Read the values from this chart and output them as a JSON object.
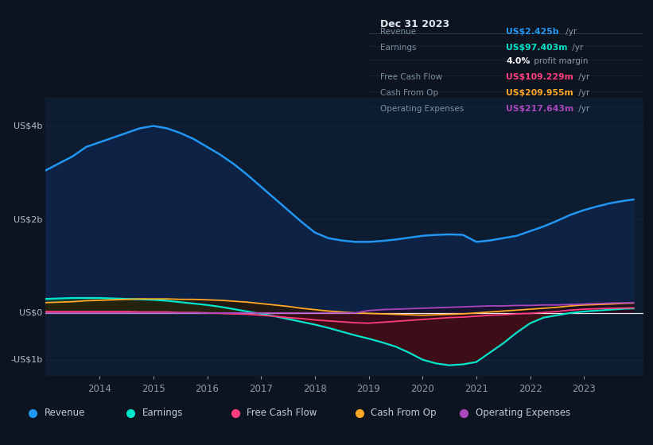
{
  "bg_color": "#0d1420",
  "plot_bg_color": "#0d1c30",
  "grid_color": "#1a2a3a",
  "zero_line_color": "#ffffff",
  "years": [
    2013.0,
    2013.25,
    2013.5,
    2013.75,
    2014.0,
    2014.25,
    2014.5,
    2014.75,
    2015.0,
    2015.25,
    2015.5,
    2015.75,
    2016.0,
    2016.25,
    2016.5,
    2016.75,
    2017.0,
    2017.25,
    2017.5,
    2017.75,
    2018.0,
    2018.25,
    2018.5,
    2018.75,
    2019.0,
    2019.25,
    2019.5,
    2019.75,
    2020.0,
    2020.25,
    2020.5,
    2020.75,
    2021.0,
    2021.25,
    2021.5,
    2021.75,
    2022.0,
    2022.25,
    2022.5,
    2022.75,
    2023.0,
    2023.25,
    2023.5,
    2023.75,
    2023.92
  ],
  "revenue": [
    3.05,
    3.2,
    3.35,
    3.55,
    3.65,
    3.75,
    3.85,
    3.95,
    4.0,
    3.95,
    3.85,
    3.72,
    3.55,
    3.38,
    3.18,
    2.95,
    2.7,
    2.45,
    2.2,
    1.95,
    1.72,
    1.6,
    1.55,
    1.52,
    1.52,
    1.54,
    1.57,
    1.61,
    1.65,
    1.67,
    1.68,
    1.67,
    1.52,
    1.55,
    1.6,
    1.65,
    1.75,
    1.85,
    1.97,
    2.1,
    2.2,
    2.28,
    2.35,
    2.4,
    2.425
  ],
  "earnings": [
    0.3,
    0.31,
    0.32,
    0.32,
    0.32,
    0.31,
    0.3,
    0.29,
    0.28,
    0.26,
    0.23,
    0.2,
    0.17,
    0.13,
    0.08,
    0.03,
    -0.02,
    -0.07,
    -0.13,
    -0.19,
    -0.25,
    -0.32,
    -0.4,
    -0.48,
    -0.55,
    -0.63,
    -0.72,
    -0.85,
    -1.0,
    -1.08,
    -1.12,
    -1.1,
    -1.05,
    -0.85,
    -0.65,
    -0.42,
    -0.22,
    -0.1,
    -0.05,
    0.0,
    0.03,
    0.05,
    0.07,
    0.09,
    0.097
  ],
  "free_cash_flow": [
    0.03,
    0.03,
    0.03,
    0.03,
    0.03,
    0.03,
    0.03,
    0.02,
    0.02,
    0.02,
    0.01,
    0.01,
    0.0,
    -0.01,
    -0.02,
    -0.03,
    -0.05,
    -0.07,
    -0.1,
    -0.12,
    -0.15,
    -0.17,
    -0.19,
    -0.21,
    -0.22,
    -0.2,
    -0.18,
    -0.16,
    -0.14,
    -0.12,
    -0.1,
    -0.09,
    -0.07,
    -0.05,
    -0.04,
    -0.02,
    -0.01,
    0.01,
    0.03,
    0.06,
    0.08,
    0.09,
    0.1,
    0.105,
    0.109
  ],
  "cash_from_op": [
    0.22,
    0.23,
    0.24,
    0.26,
    0.27,
    0.28,
    0.29,
    0.3,
    0.3,
    0.3,
    0.29,
    0.29,
    0.28,
    0.27,
    0.25,
    0.23,
    0.2,
    0.17,
    0.14,
    0.1,
    0.07,
    0.04,
    0.02,
    0.0,
    -0.01,
    -0.02,
    -0.03,
    -0.04,
    -0.05,
    -0.04,
    -0.03,
    -0.02,
    0.0,
    0.02,
    0.04,
    0.06,
    0.08,
    0.1,
    0.12,
    0.15,
    0.17,
    0.18,
    0.19,
    0.205,
    0.21
  ],
  "op_expenses": [
    0.0,
    0.0,
    0.0,
    0.0,
    0.0,
    0.0,
    0.0,
    0.0,
    0.0,
    0.0,
    0.0,
    0.0,
    0.0,
    0.0,
    0.0,
    0.0,
    0.0,
    0.0,
    0.0,
    0.0,
    0.0,
    0.0,
    0.0,
    0.0,
    0.05,
    0.07,
    0.08,
    0.09,
    0.1,
    0.11,
    0.12,
    0.13,
    0.14,
    0.15,
    0.15,
    0.16,
    0.16,
    0.17,
    0.17,
    0.18,
    0.19,
    0.2,
    0.21,
    0.215,
    0.218
  ],
  "revenue_color": "#2196f3",
  "revenue_fill": "#0a1e3a",
  "earnings_color": "#00e5cc",
  "earnings_fill_pos": "#1a4a3a",
  "earnings_fill_neg": "#4a1020",
  "fcf_color": "#ff3d7f",
  "cashop_color": "#ffa726",
  "opex_color": "#ab47bc",
  "ylim_min": -1.35,
  "ylim_max": 4.6,
  "ytick_values": [
    4.0,
    2.0,
    0.0,
    -1.0
  ],
  "ytick_labels": [
    "US$4b",
    "US$2b",
    "US$0",
    "-US$1b"
  ],
  "xtick_values": [
    2014,
    2015,
    2016,
    2017,
    2018,
    2019,
    2020,
    2021,
    2022,
    2023
  ],
  "xtick_labels": [
    "2014",
    "2015",
    "2016",
    "2017",
    "2018",
    "2019",
    "2020",
    "2021",
    "2022",
    "2023"
  ],
  "legend_items": [
    "Revenue",
    "Earnings",
    "Free Cash Flow",
    "Cash From Op",
    "Operating Expenses"
  ],
  "legend_colors": [
    "#2196f3",
    "#00e5cc",
    "#ff3d7f",
    "#ffa726",
    "#ab47bc"
  ],
  "info_box": {
    "title": "Dec 31 2023",
    "rows": [
      {
        "label": "Revenue",
        "value": "US$2.425b",
        "value_color": "#2196f3",
        "suffix": " /yr"
      },
      {
        "label": "Earnings",
        "value": "US$97.403m",
        "value_color": "#00e5cc",
        "suffix": " /yr"
      },
      {
        "label": "",
        "value": "4.0%",
        "value_color": "#ffffff",
        "suffix": " profit margin"
      },
      {
        "label": "Free Cash Flow",
        "value": "US$109.229m",
        "value_color": "#ff3d7f",
        "suffix": " /yr"
      },
      {
        "label": "Cash From Op",
        "value": "US$209.955m",
        "value_color": "#ffa726",
        "suffix": " /yr"
      },
      {
        "label": "Operating Expenses",
        "value": "US$217.643m",
        "value_color": "#ab47bc",
        "suffix": " /yr"
      }
    ]
  }
}
